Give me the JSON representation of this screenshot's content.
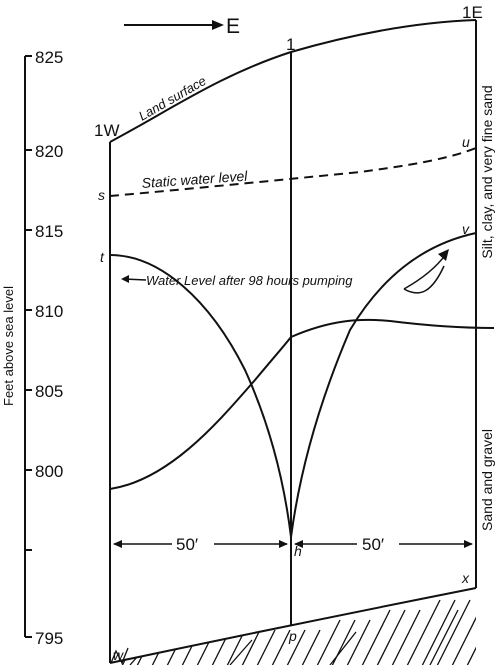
{
  "direction": {
    "label": "E"
  },
  "wells": {
    "west": "1W",
    "center": "1",
    "east": "1E"
  },
  "axis": {
    "label": "Feet above sea level",
    "ticks": [
      {
        "value": 825,
        "text": "825"
      },
      {
        "value": 820,
        "text": "820"
      },
      {
        "value": 815,
        "text": "815"
      },
      {
        "value": 810,
        "text": "810"
      },
      {
        "value": 805,
        "text": "805"
      },
      {
        "value": 800,
        "text": "800"
      },
      {
        "value": 795,
        "text": "795"
      }
    ]
  },
  "labels": {
    "land_surface": "Land surface",
    "static_water_level": "Static    water    level",
    "water_after_pumping": "Water Level after 98 hours pumping",
    "layer_upper": "Silt, clay, and very fine sand",
    "layer_lower": "Sand and gravel"
  },
  "points": {
    "s": "s",
    "t": "t",
    "u": "u",
    "v": "v",
    "h": "h",
    "p": "p",
    "w": "w",
    "x": "x"
  },
  "distances": {
    "left": "50′",
    "right": "50′"
  }
}
